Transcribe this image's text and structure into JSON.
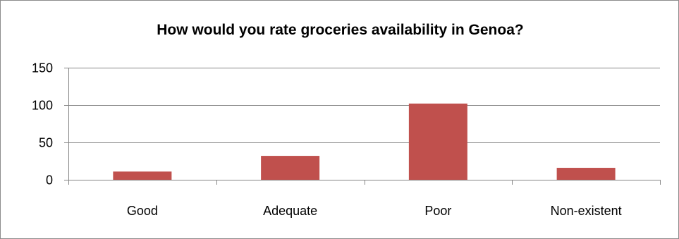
{
  "chart_data": {
    "type": "bar",
    "title": "How would you rate groceries availability in Genoa?",
    "categories": [
      "Good",
      "Adequate",
      "Poor",
      "Non-existent"
    ],
    "values": [
      11,
      32,
      102,
      16
    ],
    "ylim": [
      0,
      150
    ],
    "yticks": [
      0,
      50,
      100,
      150
    ],
    "xlabel": "",
    "ylabel": "",
    "grid": true,
    "legend": "none",
    "bar_color": "#c0504d",
    "grid_color": "#868686"
  }
}
